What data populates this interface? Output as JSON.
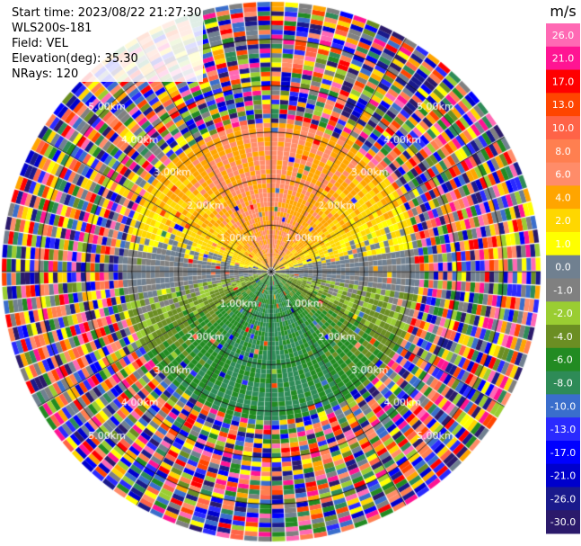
{
  "header": {
    "start_time": "Start time: 2023/08/22 21:27:30",
    "instrument": "WLS200s-181",
    "field": "Field: VEL",
    "elevation": "Elevation(deg): 35.30",
    "nrays": "NRays: 120"
  },
  "chart_data": {
    "type": "heatmap",
    "projection": "polar-ppi",
    "field": "VEL",
    "units": "m/s",
    "n_rays": 120,
    "range_rings_km": [
      1.0,
      2.0,
      3.0,
      4.0,
      5.0
    ],
    "range_ring_labels": [
      "1.00km",
      "2.00km",
      "3.00km",
      "4.00km",
      "5.00km"
    ],
    "max_range_km": 5.8,
    "valid_data_range_km": 3.2,
    "spoke_count": 12,
    "grid": true,
    "colorbar": {
      "label": "m/s",
      "ticks": [
        "26.0",
        "21.0",
        "17.0",
        "13.0",
        "10.0",
        "8.0",
        "6.0",
        "4.0",
        "2.0",
        "1.0",
        "0.0",
        "-1.0",
        "-2.0",
        "-4.0",
        "-6.0",
        "-8.0",
        "-10.0",
        "-13.0",
        "-17.0",
        "-21.0",
        "-26.0",
        "-30.0"
      ],
      "levels": [
        -30,
        -26,
        -21,
        -17,
        -13,
        -10,
        -8,
        -6,
        -4,
        -2,
        -1,
        0,
        1,
        2,
        4,
        6,
        8,
        10,
        13,
        17,
        21,
        26,
        30
      ],
      "colors": [
        "#2b1a6b",
        "#1a1a8c",
        "#0000cc",
        "#0000ff",
        "#2a2aff",
        "#3a6ecc",
        "#2e8b57",
        "#228b22",
        "#6b8e23",
        "#9acd32",
        "#808080",
        "#708090",
        "#ffff00",
        "#ffd700",
        "#ffa500",
        "#ff8c69",
        "#ff7f50",
        "#ff6347",
        "#ff4500",
        "#ff0000",
        "#ff1493",
        "#ff69b4"
      ]
    },
    "velocity_pattern": {
      "north_sector": "positive (4.0 to 10.0 m/s)",
      "south_sector": "negative (-2.0 to -8.0 m/s)",
      "east_west": "near 0.0 m/s"
    }
  }
}
